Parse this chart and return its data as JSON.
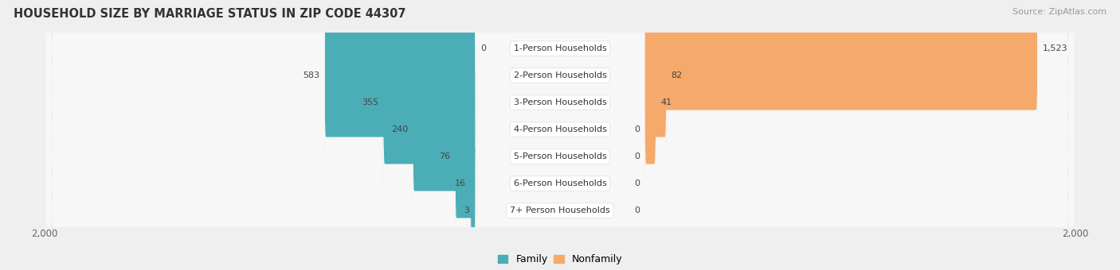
{
  "title": "HOUSEHOLD SIZE BY MARRIAGE STATUS IN ZIP CODE 44307",
  "source": "Source: ZipAtlas.com",
  "categories": [
    "7+ Person Households",
    "6-Person Households",
    "5-Person Households",
    "4-Person Households",
    "3-Person Households",
    "2-Person Households",
    "1-Person Households"
  ],
  "family_values": [
    3,
    16,
    76,
    240,
    355,
    583,
    0
  ],
  "nonfamily_values": [
    0,
    0,
    0,
    0,
    41,
    82,
    1523
  ],
  "family_color": "#4BADB5",
  "nonfamily_color": "#F5A96B",
  "max_val": 2000,
  "bg_color": "#efefef",
  "row_bg_color": "#f7f7f7",
  "title_fontsize": 10.5,
  "source_fontsize": 8,
  "label_fontsize": 8,
  "value_fontsize": 8,
  "tick_fontsize": 8.5,
  "legend_fontsize": 9
}
